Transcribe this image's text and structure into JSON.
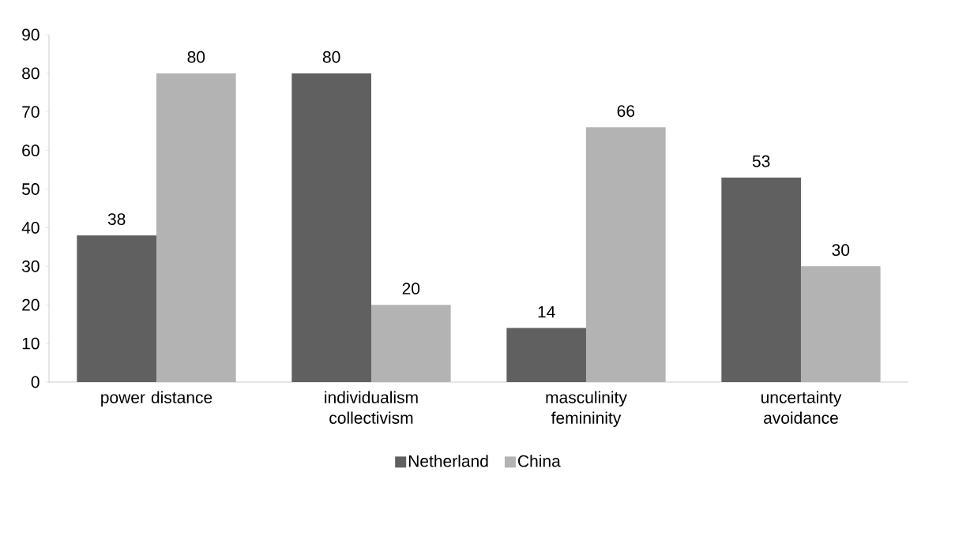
{
  "chart_data": {
    "type": "bar",
    "categories": [
      "power distance",
      "individualism collectivism",
      "masculinity femininity",
      "uncertainty avoidance"
    ],
    "series": [
      {
        "name": "Netherland",
        "color": "#606060",
        "values": [
          38,
          80,
          14,
          53
        ]
      },
      {
        "name": "China",
        "color": "#b3b3b3",
        "values": [
          80,
          20,
          66,
          30
        ]
      }
    ],
    "ylim": [
      0,
      90
    ],
    "yticks": [
      0,
      10,
      20,
      30,
      40,
      50,
      60,
      70,
      80,
      90
    ],
    "data_labels": true,
    "grid": false,
    "legend": "bottom"
  }
}
